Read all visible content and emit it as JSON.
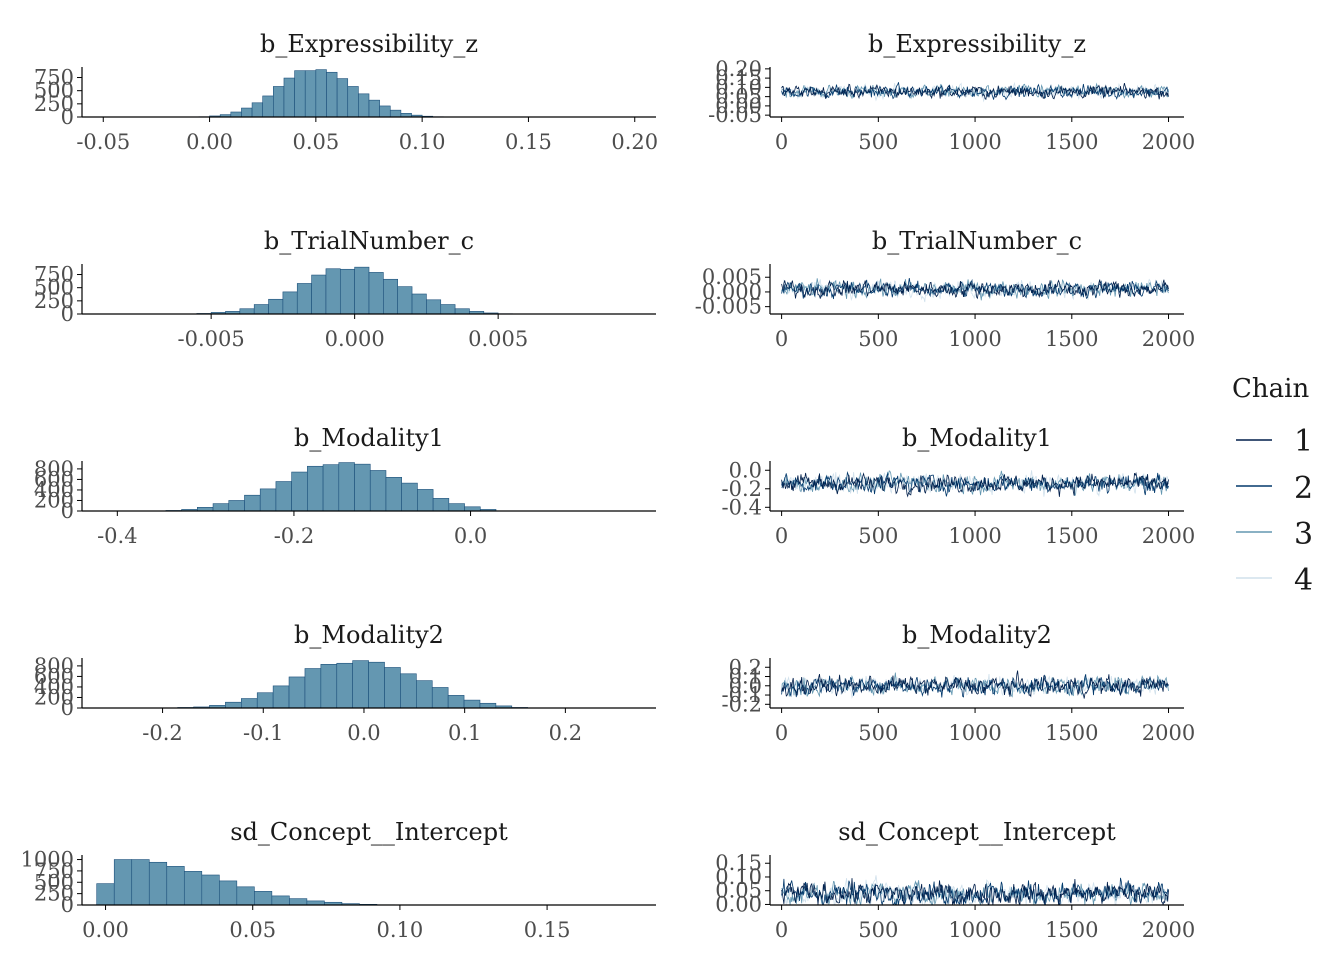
{
  "colors": {
    "hist_fill": "#6497b1",
    "hist_stroke": "#1b4f7a",
    "axis": "#000000",
    "chain": [
      "#011f4b",
      "#03396c",
      "#6497b1",
      "#d1e1ec"
    ]
  },
  "legend": {
    "title": "Chain",
    "items": [
      {
        "label": "1"
      },
      {
        "label": "2"
      },
      {
        "label": "3"
      },
      {
        "label": "4"
      }
    ]
  },
  "chart_data": [
    {
      "type": "bar",
      "title": "b_Expressibility_z",
      "xlim": [
        -0.06,
        0.21
      ],
      "ylim": [
        0,
        950
      ],
      "xticks": [
        -0.05,
        0.0,
        0.05,
        0.1,
        0.15,
        0.2
      ],
      "xtick_labels": [
        "-0.05",
        "0.00",
        "0.05",
        "0.10",
        "0.15",
        "0.20"
      ],
      "yticks": [
        0,
        250,
        500,
        750
      ],
      "ytick_labels": [
        "0",
        "250",
        "500",
        "750"
      ],
      "bin_start": -0.005,
      "bin_width": 0.005,
      "values": [
        5,
        20,
        45,
        95,
        170,
        270,
        400,
        580,
        740,
        880,
        880,
        900,
        850,
        730,
        580,
        440,
        320,
        210,
        130,
        70,
        35,
        15,
        5
      ]
    },
    {
      "type": "line",
      "title": "b_Expressibility_z",
      "xlim": [
        -60,
        2080
      ],
      "ylim": [
        -0.06,
        0.21
      ],
      "xticks": [
        0,
        500,
        1000,
        1500,
        2000
      ],
      "xtick_labels": [
        "0",
        "500",
        "1000",
        "1500",
        "2000"
      ],
      "yticks": [
        -0.05,
        0.0,
        0.05,
        0.1,
        0.15,
        0.2
      ],
      "ytick_labels": [
        "-0.05",
        "0.00",
        "0.05",
        "0.10",
        "0.15",
        "0.20"
      ],
      "iterations": 2000,
      "chain_center": 0.077,
      "chain_band": [
        0.01,
        0.145
      ]
    },
    {
      "type": "bar",
      "title": "b_TrialNumber_c",
      "xlim": [
        -0.0095,
        0.0105
      ],
      "ylim": [
        0,
        950
      ],
      "xticks": [
        -0.005,
        0.0,
        0.005
      ],
      "xtick_labels": [
        "-0.005",
        "0.000",
        "0.005"
      ],
      "yticks": [
        0,
        250,
        500,
        750
      ],
      "ytick_labels": [
        "0",
        "250",
        "500",
        "750"
      ],
      "bin_start": -0.0055,
      "bin_width": 0.0005,
      "values": [
        10,
        30,
        50,
        100,
        180,
        280,
        420,
        580,
        740,
        860,
        850,
        890,
        790,
        660,
        520,
        380,
        270,
        180,
        100,
        50,
        20,
        5
      ]
    },
    {
      "type": "line",
      "title": "b_TrialNumber_c",
      "xlim": [
        -60,
        2080
      ],
      "ylim": [
        -0.0075,
        0.0095
      ],
      "xticks": [
        0,
        500,
        1000,
        1500,
        2000
      ],
      "xtick_labels": [
        "0",
        "500",
        "1000",
        "1500",
        "2000"
      ],
      "yticks": [
        -0.005,
        0.0,
        0.005
      ],
      "ytick_labels": [
        "-0.005",
        "0.000",
        "0.005"
      ],
      "iterations": 2000,
      "chain_center": 0.001,
      "chain_band": [
        -0.0045,
        0.0065
      ]
    },
    {
      "type": "bar",
      "title": "b_Modality1",
      "xlim": [
        -0.44,
        0.21
      ],
      "ylim": [
        0,
        950
      ],
      "xticks": [
        -0.4,
        -0.2,
        0.0
      ],
      "xtick_labels": [
        "-0.4",
        "-0.2",
        "0.0"
      ],
      "yticks": [
        0,
        200,
        400,
        600,
        800
      ],
      "ytick_labels": [
        "0",
        "200",
        "400",
        "600",
        "800"
      ],
      "bin_start": -0.345,
      "bin_width": 0.0178,
      "values": [
        10,
        30,
        70,
        140,
        200,
        300,
        420,
        560,
        740,
        850,
        880,
        920,
        890,
        770,
        640,
        530,
        410,
        240,
        140,
        80,
        30
      ]
    },
    {
      "type": "line",
      "title": "b_Modality1",
      "xlim": [
        -60,
        2080
      ],
      "ylim": [
        -0.44,
        0.1
      ],
      "xticks": [
        0,
        500,
        1000,
        1500,
        2000
      ],
      "xtick_labels": [
        "0",
        "500",
        "1000",
        "1500",
        "2000"
      ],
      "yticks": [
        -0.4,
        -0.2,
        0.0
      ],
      "ytick_labels": [
        "-0.4",
        "-0.2",
        "0.0"
      ],
      "iterations": 2000,
      "chain_center": -0.14,
      "chain_band": [
        -0.34,
        0.05
      ]
    },
    {
      "type": "bar",
      "title": "b_Modality2",
      "xlim": [
        -0.28,
        0.29
      ],
      "ylim": [
        0,
        950
      ],
      "xticks": [
        -0.2,
        -0.1,
        0.0,
        0.1,
        0.2
      ],
      "xtick_labels": [
        "-0.2",
        "-0.1",
        "0.0",
        "0.1",
        "0.2"
      ],
      "yticks": [
        0,
        200,
        400,
        600,
        800
      ],
      "ytick_labels": [
        "0",
        "200",
        "400",
        "600",
        "800"
      ],
      "bin_start": -0.185,
      "bin_width": 0.0158,
      "values": [
        10,
        20,
        50,
        110,
        180,
        290,
        420,
        590,
        750,
        830,
        850,
        900,
        870,
        770,
        650,
        520,
        390,
        240,
        150,
        90,
        40,
        10
      ]
    },
    {
      "type": "line",
      "title": "b_Modality2",
      "xlim": [
        -60,
        2080
      ],
      "ylim": [
        -0.24,
        0.3
      ],
      "xticks": [
        0,
        500,
        1000,
        1500,
        2000
      ],
      "xtick_labels": [
        "0",
        "500",
        "1000",
        "1500",
        "2000"
      ],
      "yticks": [
        -0.2,
        -0.1,
        0.0,
        0.1,
        0.2
      ],
      "ytick_labels": [
        "-0.2",
        "-0.1",
        "0.0",
        "0.1",
        "0.2"
      ],
      "iterations": 2000,
      "chain_center": 0.0,
      "chain_band": [
        -0.2,
        0.2
      ]
    },
    {
      "type": "bar",
      "title": "sd_Concept__Intercept",
      "xlim": [
        -0.008,
        0.187
      ],
      "ylim": [
        0,
        1100
      ],
      "xticks": [
        0.0,
        0.05,
        0.1,
        0.15
      ],
      "xtick_labels": [
        "0.00",
        "0.05",
        "0.10",
        "0.15"
      ],
      "yticks": [
        0,
        250,
        500,
        750,
        1000
      ],
      "ytick_labels": [
        "0",
        "250",
        "500",
        "750",
        "1000"
      ],
      "bin_start": -0.003,
      "bin_width": 0.00595,
      "values": [
        470,
        1000,
        1000,
        940,
        850,
        740,
        660,
        530,
        400,
        300,
        200,
        140,
        90,
        60,
        30,
        15,
        5
      ]
    },
    {
      "type": "line",
      "title": "sd_Concept__Intercept",
      "xlim": [
        -60,
        2080
      ],
      "ylim": [
        -0.002,
        0.18
      ],
      "xticks": [
        0,
        500,
        1000,
        1500,
        2000
      ],
      "xtick_labels": [
        "0",
        "500",
        "1000",
        "1500",
        "2000"
      ],
      "yticks": [
        0.0,
        0.05,
        0.1,
        0.15
      ],
      "ytick_labels": [
        "0.00",
        "0.05",
        "0.10",
        "0.15"
      ],
      "iterations": 2000,
      "chain_center": 0.04,
      "chain_band": [
        0.0,
        0.17
      ]
    }
  ]
}
